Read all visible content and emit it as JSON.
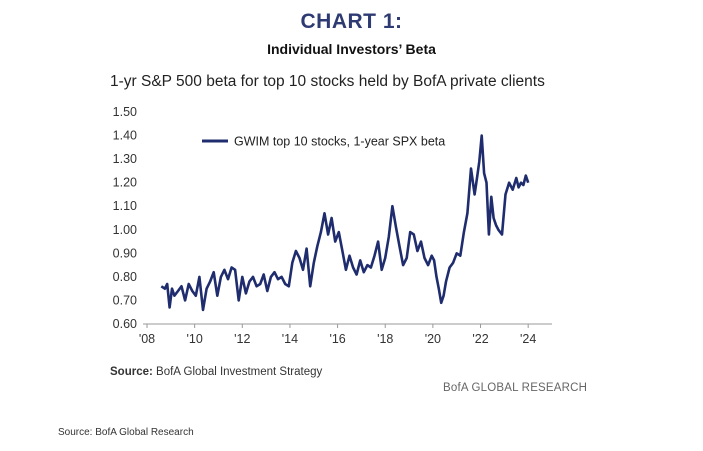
{
  "page": {
    "title": "CHART 1:",
    "subtitle": "Individual Investors’ Beta",
    "footer_source": "Source: BofA Global Research"
  },
  "chart_data": {
    "type": "line",
    "title": "1-yr S&P 500 beta for top 10 stocks held by BofA private clients",
    "xlabel": "",
    "ylabel": "",
    "xlim": [
      2008.0,
      2025.0
    ],
    "ylim": [
      0.6,
      1.5
    ],
    "y_ticks": [
      "0.60",
      "0.70",
      "0.80",
      "0.90",
      "1.00",
      "1.10",
      "1.20",
      "1.30",
      "1.40",
      "1.50"
    ],
    "x_ticks": [
      {
        "label": "'08",
        "value": 2008
      },
      {
        "label": "'10",
        "value": 2010
      },
      {
        "label": "'12",
        "value": 2012
      },
      {
        "label": "'14",
        "value": 2014
      },
      {
        "label": "'16",
        "value": 2016
      },
      {
        "label": "'18",
        "value": 2018
      },
      {
        "label": "'20",
        "value": 2020
      },
      {
        "label": "'22",
        "value": 2022
      },
      {
        "label": "'24",
        "value": 2024
      }
    ],
    "legend_position": "top-left",
    "grid": false,
    "series": [
      {
        "name": "GWIM top 10 stocks, 1-year SPX beta",
        "color": "#1f2d6e",
        "x": [
          2008.6,
          2008.75,
          2008.85,
          2008.95,
          2009.05,
          2009.15,
          2009.3,
          2009.45,
          2009.6,
          2009.75,
          2009.9,
          2010.05,
          2010.2,
          2010.35,
          2010.5,
          2010.65,
          2010.8,
          2010.95,
          2011.1,
          2011.25,
          2011.4,
          2011.55,
          2011.7,
          2011.85,
          2012.0,
          2012.15,
          2012.3,
          2012.45,
          2012.6,
          2012.75,
          2012.9,
          2013.05,
          2013.2,
          2013.35,
          2013.5,
          2013.65,
          2013.8,
          2013.95,
          2014.1,
          2014.25,
          2014.4,
          2014.55,
          2014.7,
          2014.85,
          2015.0,
          2015.15,
          2015.3,
          2015.45,
          2015.6,
          2015.75,
          2015.9,
          2016.05,
          2016.2,
          2016.35,
          2016.5,
          2016.65,
          2016.8,
          2016.95,
          2017.1,
          2017.25,
          2017.4,
          2017.55,
          2017.7,
          2017.85,
          2018.0,
          2018.15,
          2018.3,
          2018.45,
          2018.6,
          2018.75,
          2018.9,
          2019.05,
          2019.2,
          2019.35,
          2019.5,
          2019.65,
          2019.8,
          2019.95,
          2020.05,
          2020.15,
          2020.25,
          2020.35,
          2020.45,
          2020.55,
          2020.7,
          2020.85,
          2021.0,
          2021.15,
          2021.3,
          2021.45,
          2021.6,
          2021.75,
          2021.85,
          2021.95,
          2022.05,
          2022.15,
          2022.25,
          2022.35,
          2022.45,
          2022.55,
          2022.65,
          2022.75,
          2022.9,
          2023.05,
          2023.2,
          2023.35,
          2023.5,
          2023.6,
          2023.7,
          2023.8,
          2023.9,
          2024.0
        ],
        "values": [
          0.76,
          0.75,
          0.77,
          0.67,
          0.75,
          0.72,
          0.74,
          0.76,
          0.7,
          0.77,
          0.74,
          0.72,
          0.8,
          0.66,
          0.75,
          0.78,
          0.82,
          0.72,
          0.8,
          0.83,
          0.79,
          0.84,
          0.83,
          0.7,
          0.8,
          0.73,
          0.78,
          0.8,
          0.76,
          0.77,
          0.81,
          0.74,
          0.8,
          0.82,
          0.79,
          0.8,
          0.77,
          0.76,
          0.86,
          0.91,
          0.88,
          0.83,
          0.92,
          0.76,
          0.86,
          0.93,
          0.99,
          1.07,
          0.98,
          1.05,
          0.95,
          0.99,
          0.91,
          0.83,
          0.89,
          0.84,
          0.81,
          0.87,
          0.82,
          0.85,
          0.84,
          0.89,
          0.95,
          0.83,
          0.88,
          0.97,
          1.1,
          1.01,
          0.93,
          0.85,
          0.88,
          0.99,
          0.98,
          0.91,
          0.95,
          0.88,
          0.85,
          0.89,
          0.87,
          0.8,
          0.75,
          0.69,
          0.72,
          0.78,
          0.84,
          0.86,
          0.9,
          0.89,
          0.99,
          1.07,
          1.26,
          1.15,
          1.22,
          1.29,
          1.4,
          1.24,
          1.2,
          0.98,
          1.14,
          1.05,
          1.02,
          1.0,
          0.98,
          1.15,
          1.2,
          1.17,
          1.22,
          1.18,
          1.2,
          1.19,
          1.23,
          1.2
        ]
      }
    ]
  },
  "source": {
    "label": "Source:",
    "text": "BofA Global Investment Strategy"
  },
  "brand": "BofA GLOBAL RESEARCH"
}
